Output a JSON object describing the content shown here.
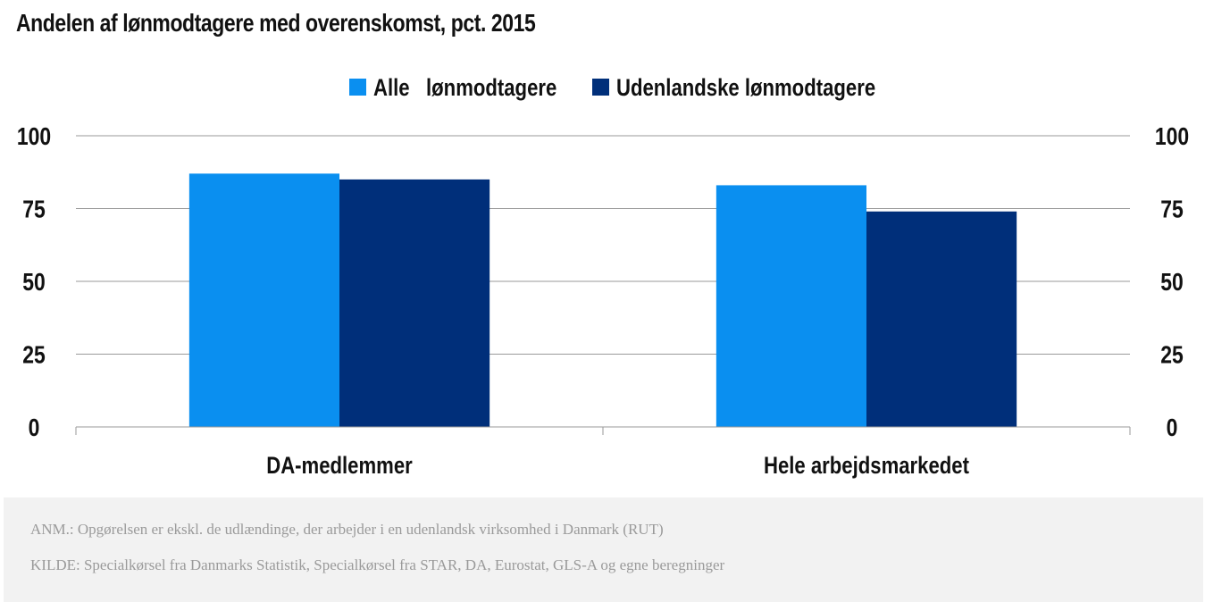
{
  "title": "Andelen af lønmodtagere med overenskomst, pct. 2015",
  "chart_data": {
    "type": "bar",
    "categories": [
      "DA-medlemmer",
      "Hele arbejdsmarkedet"
    ],
    "series": [
      {
        "name": "Alle   lønmodtagere",
        "values": [
          87,
          83
        ],
        "color": "#0a8ff0"
      },
      {
        "name": "Udenlandske lønmodtagere",
        "values": [
          85,
          74
        ],
        "color": "#002f7a"
      }
    ],
    "ylim": [
      0,
      100
    ],
    "yticks": [
      0,
      25,
      50,
      75,
      100
    ],
    "grid": true,
    "legend_position": "top-center",
    "dual_y_axis": true
  },
  "notes": {
    "anm": "ANM.: Opgørelsen er ekskl. de udlændinge, der arbejder i en udenlandsk virksomhed i Danmark (RUT)",
    "kilde": "KILDE: Specialkørsel fra Danmarks Statistik, Specialkørsel fra STAR, DA, Eurostat, GLS-A og egne beregninger"
  }
}
